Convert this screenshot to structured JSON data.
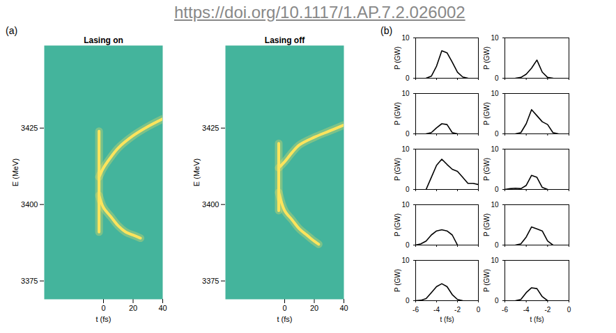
{
  "link": "https://doi.org/10.1117/1.AP.7.2.026002",
  "panel_labels": [
    "(a)",
    "(b)"
  ],
  "chart_data": [
    {
      "type": "line",
      "title": "Lasing on",
      "xlabel": "t (fs)",
      "ylabel": "E (MeV)",
      "xlim": [
        -40,
        40
      ],
      "xticks": [
        0,
        20,
        40
      ],
      "ylim": [
        3369,
        3452
      ],
      "yticks": [
        3375,
        3400,
        3425
      ],
      "series": [
        {
          "color": "#ffe45c",
          "x": [
            -3,
            0,
            5,
            10,
            20,
            30,
            40
          ],
          "values": [
            3409,
            3412,
            3415.5,
            3418.5,
            3422.5,
            3425.5,
            3428
          ]
        },
        {
          "color": "#ffe45c",
          "x": [
            -3,
            0,
            5,
            10,
            15,
            20,
            25
          ],
          "values": [
            3403,
            3399,
            3396,
            3393,
            3391,
            3390,
            3389
          ]
        },
        {
          "color": "#ffe45c",
          "x": [
            -3,
            -3
          ],
          "values": [
            3391,
            3424
          ]
        }
      ]
    },
    {
      "type": "line",
      "title": "Lasing off",
      "xlabel": "t (fs)",
      "ylabel": "E (MeV)",
      "xlim": [
        -40,
        40
      ],
      "xticks": [
        0,
        20,
        40
      ],
      "ylim": [
        3369,
        3452
      ],
      "yticks": [
        3375,
        3400,
        3425
      ],
      "series": [
        {
          "color": "#ffe45c",
          "x": [
            -4,
            0,
            5,
            10,
            20,
            30,
            40
          ],
          "values": [
            3412,
            3414,
            3417,
            3419.5,
            3422,
            3424,
            3426
          ]
        },
        {
          "color": "#ffe45c",
          "x": [
            -4,
            0,
            5,
            10,
            15,
            20,
            23
          ],
          "values": [
            3404,
            3398,
            3395,
            3392,
            3390,
            3388,
            3387
          ]
        },
        {
          "color": "#ffe45c",
          "x": [
            -4,
            -4
          ],
          "values": [
            3398,
            3420
          ]
        }
      ]
    },
    {
      "type": "line",
      "ylabel": "P (GW)",
      "xlim": [
        -6,
        0
      ],
      "xticks": [
        -6,
        -4,
        -2,
        0
      ],
      "ylim": [
        0,
        10
      ],
      "yticks": [
        0,
        10
      ],
      "tick_labels": "y",
      "color": "#000000",
      "x": [
        -5,
        -4.5,
        -4,
        -3.5,
        -3,
        -2.5,
        -2,
        -1.5,
        -1
      ],
      "values": [
        0,
        0.5,
        3,
        6.8,
        6.3,
        4,
        1.5,
        0.3,
        0
      ]
    },
    {
      "type": "line",
      "ylabel": "P (GW)",
      "xlim": [
        -6,
        0
      ],
      "xticks": [
        -6,
        -4,
        -2,
        0
      ],
      "ylim": [
        0,
        10
      ],
      "yticks": [
        0,
        10
      ],
      "tick_labels": "y",
      "color": "#000000",
      "x": [
        -5,
        -4.5,
        -4,
        -3.5,
        -3,
        -2.5,
        -2,
        -1.5
      ],
      "values": [
        0,
        0.2,
        1,
        2.5,
        4.5,
        1.5,
        0.2,
        0
      ]
    },
    {
      "type": "line",
      "ylabel": "P (GW)",
      "xlim": [
        -6,
        0
      ],
      "xticks": [
        -6,
        -4,
        -2,
        0
      ],
      "ylim": [
        0,
        10
      ],
      "yticks": [
        0,
        10
      ],
      "tick_labels": "y",
      "color": "#000000",
      "x": [
        -5,
        -4.5,
        -4,
        -3.5,
        -3,
        -2.5,
        -2
      ],
      "values": [
        0,
        0.3,
        1.5,
        2.5,
        2.3,
        0.3,
        0
      ]
    },
    {
      "type": "line",
      "ylabel": "P (GW)",
      "xlim": [
        -6,
        0
      ],
      "xticks": [
        -6,
        -4,
        -2,
        0
      ],
      "ylim": [
        0,
        10
      ],
      "yticks": [
        0,
        10
      ],
      "tick_labels": "y",
      "color": "#000000",
      "x": [
        -5,
        -4.5,
        -4,
        -3.5,
        -3,
        -2.5,
        -2,
        -1.5,
        -1
      ],
      "values": [
        0,
        0.3,
        2.5,
        6,
        4.5,
        3,
        2.3,
        0.3,
        0
      ]
    },
    {
      "type": "line",
      "ylabel": "P (GW)",
      "xlim": [
        -6,
        0
      ],
      "xticks": [
        -6,
        -4,
        -2,
        0
      ],
      "ylim": [
        0,
        10
      ],
      "yticks": [
        0,
        10
      ],
      "tick_labels": "y",
      "color": "#000000",
      "x": [
        -5,
        -4.5,
        -4,
        -3.5,
        -3,
        -2.5,
        -2,
        -1.5,
        -1,
        -0.5,
        0
      ],
      "values": [
        0,
        3,
        6,
        7.5,
        6.2,
        5,
        4.5,
        3,
        1.5,
        1.5,
        1.2
      ]
    },
    {
      "type": "line",
      "ylabel": "P (GW)",
      "xlim": [
        -6,
        0
      ],
      "xticks": [
        -6,
        -4,
        -2,
        0
      ],
      "ylim": [
        0,
        10
      ],
      "yticks": [
        0,
        10
      ],
      "tick_labels": "y",
      "color": "#000000",
      "x": [
        -6,
        -5.5,
        -5,
        -4.5,
        -4,
        -3.5,
        -3,
        -2.5,
        -2
      ],
      "values": [
        0,
        0.2,
        0.3,
        0.2,
        1,
        3.5,
        3,
        0.5,
        0
      ]
    },
    {
      "type": "line",
      "ylabel": "P (GW)",
      "xlim": [
        -6,
        0
      ],
      "xticks": [
        -6,
        -4,
        -2,
        0
      ],
      "ylim": [
        0,
        10
      ],
      "yticks": [
        0,
        10
      ],
      "tick_labels": "y",
      "color": "#000000",
      "x": [
        -6,
        -5.5,
        -5,
        -4.5,
        -4,
        -3.5,
        -3,
        -2.5,
        -2
      ],
      "values": [
        0,
        0.3,
        1,
        2.5,
        3.5,
        3.8,
        3.5,
        2.5,
        0
      ]
    },
    {
      "type": "line",
      "ylabel": "P (GW)",
      "xlim": [
        -6,
        0
      ],
      "xticks": [
        -6,
        -4,
        -2,
        0
      ],
      "ylim": [
        0,
        10
      ],
      "yticks": [
        0,
        10
      ],
      "tick_labels": "y",
      "color": "#000000",
      "x": [
        -5,
        -4.5,
        -4,
        -3.5,
        -3,
        -2.5,
        -2,
        -1.5
      ],
      "values": [
        0,
        0.3,
        2,
        4.5,
        4,
        3.5,
        1,
        0
      ]
    },
    {
      "type": "line",
      "xlabel": "t (fs)",
      "ylabel": "P (GW)",
      "xlim": [
        -6,
        0
      ],
      "xticks": [
        -6,
        -4,
        -2,
        0
      ],
      "ylim": [
        0,
        10
      ],
      "yticks": [
        0,
        10
      ],
      "color": "#000000",
      "x": [
        -6,
        -5.5,
        -5,
        -4.5,
        -4,
        -3.5,
        -3,
        -2.5,
        -2,
        -1.5
      ],
      "values": [
        0,
        0.1,
        0.5,
        2,
        3.5,
        4.2,
        3.5,
        1.5,
        0.3,
        0
      ]
    },
    {
      "type": "line",
      "xlabel": "t (fs)",
      "ylabel": "P (GW)",
      "xlim": [
        -6,
        0
      ],
      "xticks": [
        -6,
        -4,
        -2,
        0
      ],
      "ylim": [
        0,
        10
      ],
      "yticks": [
        0,
        10
      ],
      "color": "#000000",
      "x": [
        -5,
        -4.5,
        -4,
        -3.5,
        -3,
        -2.5,
        -2
      ],
      "values": [
        0,
        0.3,
        2,
        3.2,
        3,
        1,
        0
      ]
    }
  ]
}
